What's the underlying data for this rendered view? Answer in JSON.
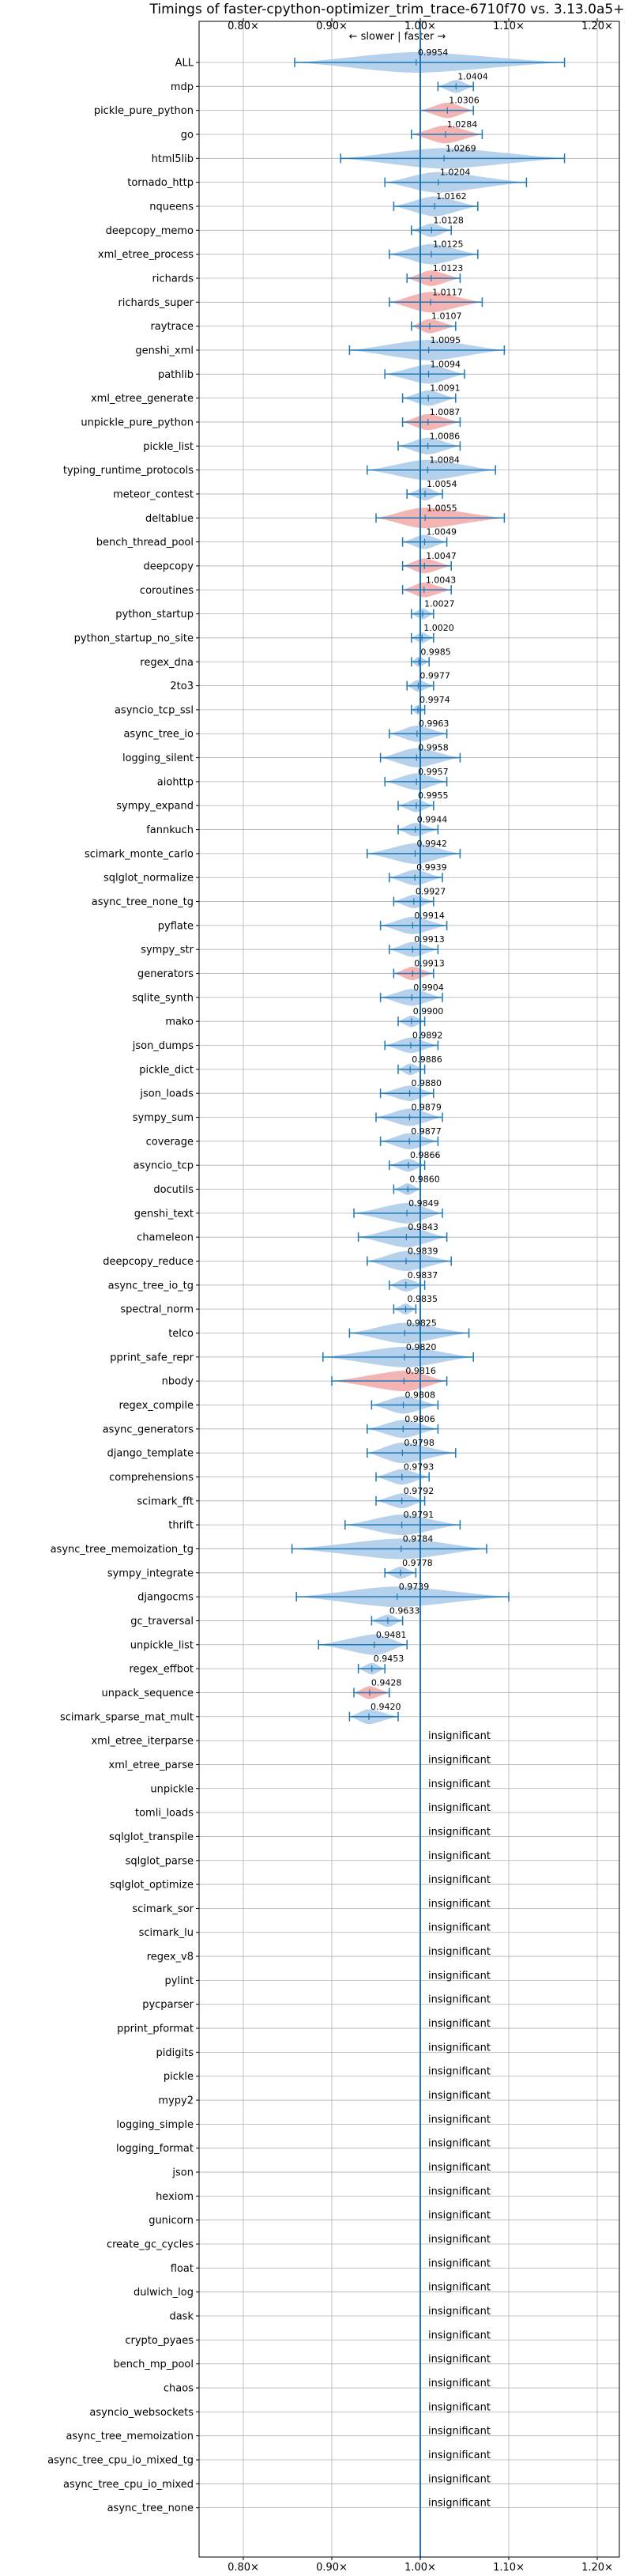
{
  "chart_data": {
    "type": "violin",
    "title": "Timings of faster-cpython-optimizer_trim_trace-6710f70 vs. 3.13.0a5+",
    "direction_label": "← slower | faster →",
    "xlim": [
      0.75,
      1.225
    ],
    "x_ticks": [
      0.8,
      0.9,
      1.0,
      1.1,
      1.2
    ],
    "x_tick_labels": [
      "0.80×",
      "0.90×",
      "1.00×",
      "1.10×",
      "1.20×"
    ],
    "reference_line": 1.0,
    "grid": true,
    "colors": {
      "violin": "#a9c9e8",
      "violin_highlight": "#f2a7a7",
      "line": "#1f77b4",
      "grid": "#b0b0b0"
    },
    "insignificant_label": "insignificant",
    "benchmarks": [
      {
        "name": "ALL",
        "value": 0.9954,
        "label": "0.9954",
        "low": 0.858,
        "high": 1.163,
        "highlight": false
      },
      {
        "name": "mdp",
        "value": 1.0404,
        "label": "1.0404",
        "low": 1.02,
        "high": 1.06,
        "highlight": false
      },
      {
        "name": "pickle_pure_python",
        "value": 1.0306,
        "label": "1.0306",
        "low": 1.0,
        "high": 1.06,
        "highlight": true
      },
      {
        "name": "go",
        "value": 1.0284,
        "label": "1.0284",
        "low": 0.99,
        "high": 1.07,
        "highlight": true
      },
      {
        "name": "html5lib",
        "value": 1.0269,
        "label": "1.0269",
        "low": 0.91,
        "high": 1.163,
        "highlight": false
      },
      {
        "name": "tornado_http",
        "value": 1.0204,
        "label": "1.0204",
        "low": 0.96,
        "high": 1.12,
        "highlight": false
      },
      {
        "name": "nqueens",
        "value": 1.0162,
        "label": "1.0162",
        "low": 0.97,
        "high": 1.065,
        "highlight": false
      },
      {
        "name": "deepcopy_memo",
        "value": 1.0128,
        "label": "1.0128",
        "low": 0.99,
        "high": 1.035,
        "highlight": false
      },
      {
        "name": "xml_etree_process",
        "value": 1.0125,
        "label": "1.0125",
        "low": 0.965,
        "high": 1.065,
        "highlight": false
      },
      {
        "name": "richards",
        "value": 1.0123,
        "label": "1.0123",
        "low": 0.985,
        "high": 1.045,
        "highlight": true
      },
      {
        "name": "richards_super",
        "value": 1.0117,
        "label": "1.0117",
        "low": 0.965,
        "high": 1.07,
        "highlight": true
      },
      {
        "name": "raytrace",
        "value": 1.0107,
        "label": "1.0107",
        "low": 0.99,
        "high": 1.04,
        "highlight": true
      },
      {
        "name": "genshi_xml",
        "value": 1.0095,
        "label": "1.0095",
        "low": 0.92,
        "high": 1.095,
        "highlight": false
      },
      {
        "name": "pathlib",
        "value": 1.0094,
        "label": "1.0094",
        "low": 0.96,
        "high": 1.05,
        "highlight": false
      },
      {
        "name": "xml_etree_generate",
        "value": 1.0091,
        "label": "1.0091",
        "low": 0.98,
        "high": 1.04,
        "highlight": false
      },
      {
        "name": "unpickle_pure_python",
        "value": 1.0087,
        "label": "1.0087",
        "low": 0.98,
        "high": 1.045,
        "highlight": true
      },
      {
        "name": "pickle_list",
        "value": 1.0086,
        "label": "1.0086",
        "low": 0.975,
        "high": 1.045,
        "highlight": false
      },
      {
        "name": "typing_runtime_protocols",
        "value": 1.0084,
        "label": "1.0084",
        "low": 0.94,
        "high": 1.085,
        "highlight": false
      },
      {
        "name": "meteor_contest",
        "value": 1.0054,
        "label": "1.0054",
        "low": 0.985,
        "high": 1.025,
        "highlight": false
      },
      {
        "name": "deltablue",
        "value": 1.0055,
        "label": "1.0055",
        "low": 0.95,
        "high": 1.095,
        "highlight": true
      },
      {
        "name": "bench_thread_pool",
        "value": 1.0049,
        "label": "1.0049",
        "low": 0.98,
        "high": 1.03,
        "highlight": false
      },
      {
        "name": "deepcopy",
        "value": 1.0047,
        "label": "1.0047",
        "low": 0.98,
        "high": 1.035,
        "highlight": true
      },
      {
        "name": "coroutines",
        "value": 1.0043,
        "label": "1.0043",
        "low": 0.98,
        "high": 1.035,
        "highlight": true
      },
      {
        "name": "python_startup",
        "value": 1.0027,
        "label": "1.0027",
        "low": 0.99,
        "high": 1.015,
        "highlight": false
      },
      {
        "name": "python_startup_no_site",
        "value": 1.002,
        "label": "1.0020",
        "low": 0.99,
        "high": 1.015,
        "highlight": false
      },
      {
        "name": "regex_dna",
        "value": 0.9985,
        "label": "0.9985",
        "low": 0.99,
        "high": 1.01,
        "highlight": false
      },
      {
        "name": "2to3",
        "value": 0.9977,
        "label": "0.9977",
        "low": 0.985,
        "high": 1.015,
        "highlight": false
      },
      {
        "name": "asyncio_tcp_ssl",
        "value": 0.9974,
        "label": "0.9974",
        "low": 0.99,
        "high": 1.005,
        "highlight": false
      },
      {
        "name": "async_tree_io",
        "value": 0.9963,
        "label": "0.9963",
        "low": 0.965,
        "high": 1.03,
        "highlight": false
      },
      {
        "name": "logging_silent",
        "value": 0.9958,
        "label": "0.9958",
        "low": 0.955,
        "high": 1.045,
        "highlight": false
      },
      {
        "name": "aiohttp",
        "value": 0.9957,
        "label": "0.9957",
        "low": 0.96,
        "high": 1.03,
        "highlight": false
      },
      {
        "name": "sympy_expand",
        "value": 0.9955,
        "label": "0.9955",
        "low": 0.975,
        "high": 1.015,
        "highlight": false
      },
      {
        "name": "fannkuch",
        "value": 0.9944,
        "label": "0.9944",
        "low": 0.975,
        "high": 1.02,
        "highlight": false
      },
      {
        "name": "scimark_monte_carlo",
        "value": 0.9942,
        "label": "0.9942",
        "low": 0.94,
        "high": 1.045,
        "highlight": false
      },
      {
        "name": "sqlglot_normalize",
        "value": 0.9939,
        "label": "0.9939",
        "low": 0.965,
        "high": 1.025,
        "highlight": false
      },
      {
        "name": "async_tree_none_tg",
        "value": 0.9927,
        "label": "0.9927",
        "low": 0.97,
        "high": 1.015,
        "highlight": false
      },
      {
        "name": "pyflate",
        "value": 0.9914,
        "label": "0.9914",
        "low": 0.955,
        "high": 1.03,
        "highlight": false
      },
      {
        "name": "sympy_str",
        "value": 0.9913,
        "label": "0.9913",
        "low": 0.965,
        "high": 1.02,
        "highlight": false
      },
      {
        "name": "generators",
        "value": 0.9913,
        "label": "0.9913",
        "low": 0.97,
        "high": 1.015,
        "highlight": true
      },
      {
        "name": "sqlite_synth",
        "value": 0.9904,
        "label": "0.9904",
        "low": 0.955,
        "high": 1.025,
        "highlight": false
      },
      {
        "name": "mako",
        "value": 0.99,
        "label": "0.9900",
        "low": 0.975,
        "high": 1.005,
        "highlight": false
      },
      {
        "name": "json_dumps",
        "value": 0.9892,
        "label": "0.9892",
        "low": 0.96,
        "high": 1.02,
        "highlight": false
      },
      {
        "name": "pickle_dict",
        "value": 0.9886,
        "label": "0.9886",
        "low": 0.975,
        "high": 1.005,
        "highlight": false
      },
      {
        "name": "json_loads",
        "value": 0.988,
        "label": "0.9880",
        "low": 0.955,
        "high": 1.015,
        "highlight": false
      },
      {
        "name": "sympy_sum",
        "value": 0.9879,
        "label": "0.9879",
        "low": 0.95,
        "high": 1.025,
        "highlight": false
      },
      {
        "name": "coverage",
        "value": 0.9877,
        "label": "0.9877",
        "low": 0.955,
        "high": 1.02,
        "highlight": false
      },
      {
        "name": "asyncio_tcp",
        "value": 0.9866,
        "label": "0.9866",
        "low": 0.965,
        "high": 1.005,
        "highlight": false
      },
      {
        "name": "docutils",
        "value": 0.986,
        "label": "0.9860",
        "low": 0.97,
        "high": 1.0,
        "highlight": false
      },
      {
        "name": "genshi_text",
        "value": 0.9849,
        "label": "0.9849",
        "low": 0.925,
        "high": 1.025,
        "highlight": false
      },
      {
        "name": "chameleon",
        "value": 0.9843,
        "label": "0.9843",
        "low": 0.93,
        "high": 1.03,
        "highlight": false
      },
      {
        "name": "deepcopy_reduce",
        "value": 0.9839,
        "label": "0.9839",
        "low": 0.94,
        "high": 1.035,
        "highlight": false
      },
      {
        "name": "async_tree_io_tg",
        "value": 0.9837,
        "label": "0.9837",
        "low": 0.965,
        "high": 1.005,
        "highlight": false
      },
      {
        "name": "spectral_norm",
        "value": 0.9835,
        "label": "0.9835",
        "low": 0.97,
        "high": 0.995,
        "highlight": false
      },
      {
        "name": "telco",
        "value": 0.9825,
        "label": "0.9825",
        "low": 0.92,
        "high": 1.055,
        "highlight": false
      },
      {
        "name": "pprint_safe_repr",
        "value": 0.982,
        "label": "0.9820",
        "low": 0.89,
        "high": 1.06,
        "highlight": false
      },
      {
        "name": "nbody",
        "value": 0.9816,
        "label": "0.9816",
        "low": 0.9,
        "high": 1.03,
        "highlight": true
      },
      {
        "name": "regex_compile",
        "value": 0.9808,
        "label": "0.9808",
        "low": 0.945,
        "high": 1.02,
        "highlight": false
      },
      {
        "name": "async_generators",
        "value": 0.9806,
        "label": "0.9806",
        "low": 0.94,
        "high": 1.02,
        "highlight": false
      },
      {
        "name": "django_template",
        "value": 0.9798,
        "label": "0.9798",
        "low": 0.94,
        "high": 1.04,
        "highlight": false
      },
      {
        "name": "comprehensions",
        "value": 0.9793,
        "label": "0.9793",
        "low": 0.95,
        "high": 1.01,
        "highlight": false
      },
      {
        "name": "scimark_fft",
        "value": 0.9792,
        "label": "0.9792",
        "low": 0.95,
        "high": 1.005,
        "highlight": false
      },
      {
        "name": "thrift",
        "value": 0.9791,
        "label": "0.9791",
        "low": 0.915,
        "high": 1.045,
        "highlight": false
      },
      {
        "name": "async_tree_memoization_tg",
        "value": 0.9784,
        "label": "0.9784",
        "low": 0.855,
        "high": 1.075,
        "highlight": false
      },
      {
        "name": "sympy_integrate",
        "value": 0.9778,
        "label": "0.9778",
        "low": 0.96,
        "high": 0.995,
        "highlight": false
      },
      {
        "name": "djangocms",
        "value": 0.9739,
        "label": "0.9739",
        "low": 0.86,
        "high": 1.1,
        "highlight": false
      },
      {
        "name": "gc_traversal",
        "value": 0.9633,
        "label": "0.9633",
        "low": 0.945,
        "high": 0.98,
        "highlight": false
      },
      {
        "name": "unpickle_list",
        "value": 0.9481,
        "label": "0.9481",
        "low": 0.885,
        "high": 0.985,
        "highlight": false
      },
      {
        "name": "regex_effbot",
        "value": 0.9453,
        "label": "0.9453",
        "low": 0.93,
        "high": 0.96,
        "highlight": false
      },
      {
        "name": "unpack_sequence",
        "value": 0.9428,
        "label": "0.9428",
        "low": 0.925,
        "high": 0.965,
        "highlight": true
      },
      {
        "name": "scimark_sparse_mat_mult",
        "value": 0.942,
        "label": "0.9420",
        "low": 0.92,
        "high": 0.975,
        "highlight": false
      },
      {
        "name": "xml_etree_iterparse",
        "insignificant": true
      },
      {
        "name": "xml_etree_parse",
        "insignificant": true
      },
      {
        "name": "unpickle",
        "insignificant": true
      },
      {
        "name": "tomli_loads",
        "insignificant": true
      },
      {
        "name": "sqlglot_transpile",
        "insignificant": true
      },
      {
        "name": "sqlglot_parse",
        "insignificant": true
      },
      {
        "name": "sqlglot_optimize",
        "insignificant": true
      },
      {
        "name": "scimark_sor",
        "insignificant": true
      },
      {
        "name": "scimark_lu",
        "insignificant": true
      },
      {
        "name": "regex_v8",
        "insignificant": true
      },
      {
        "name": "pylint",
        "insignificant": true
      },
      {
        "name": "pycparser",
        "insignificant": true
      },
      {
        "name": "pprint_pformat",
        "insignificant": true
      },
      {
        "name": "pidigits",
        "insignificant": true
      },
      {
        "name": "pickle",
        "insignificant": true
      },
      {
        "name": "mypy2",
        "insignificant": true
      },
      {
        "name": "logging_simple",
        "insignificant": true
      },
      {
        "name": "logging_format",
        "insignificant": true
      },
      {
        "name": "json",
        "insignificant": true
      },
      {
        "name": "hexiom",
        "insignificant": true
      },
      {
        "name": "gunicorn",
        "insignificant": true
      },
      {
        "name": "create_gc_cycles",
        "insignificant": true
      },
      {
        "name": "float",
        "insignificant": true
      },
      {
        "name": "dulwich_log",
        "insignificant": true
      },
      {
        "name": "dask",
        "insignificant": true
      },
      {
        "name": "crypto_pyaes",
        "insignificant": true
      },
      {
        "name": "bench_mp_pool",
        "insignificant": true
      },
      {
        "name": "chaos",
        "insignificant": true
      },
      {
        "name": "asyncio_websockets",
        "insignificant": true
      },
      {
        "name": "async_tree_memoization",
        "insignificant": true
      },
      {
        "name": "async_tree_cpu_io_mixed_tg",
        "insignificant": true
      },
      {
        "name": "async_tree_cpu_io_mixed",
        "insignificant": true
      },
      {
        "name": "async_tree_none",
        "insignificant": true
      }
    ]
  }
}
